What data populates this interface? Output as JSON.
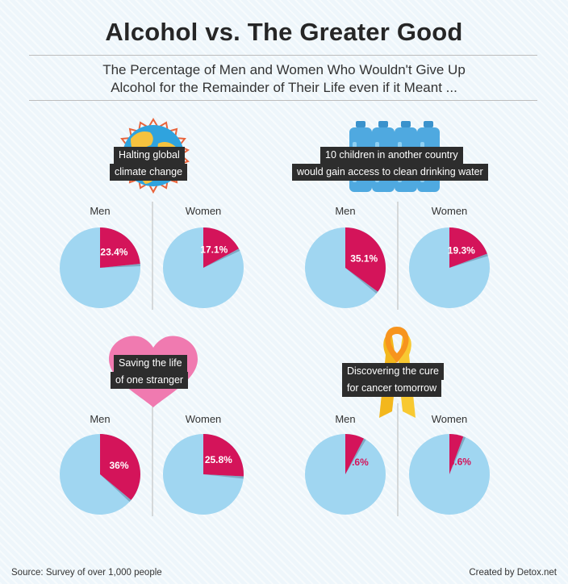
{
  "title": "Alcohol vs. The Greater Good",
  "subtitle": [
    "The Percentage of Men and Women Who Wouldn't Give Up",
    "Alcohol for the Remainder of Their Life even if it Meant ..."
  ],
  "colors": {
    "slice": "#d4145a",
    "rest": "#a0d6f1",
    "shadow": "#7fa9c4",
    "label_bg": "#2d2d2d"
  },
  "chart_data": [
    {
      "type": "pie",
      "title": "Halting global climate change",
      "icon": "globe-icon",
      "series": [
        {
          "name": "Men",
          "value": 23.4,
          "label": "23.4%"
        },
        {
          "name": "Women",
          "value": 17.1,
          "label": "17.1%"
        }
      ]
    },
    {
      "type": "pie",
      "title": "10 children in another country would gain access to clean drinking water",
      "icon": "water-bottles-icon",
      "series": [
        {
          "name": "Men",
          "value": 35.1,
          "label": "35.1%"
        },
        {
          "name": "Women",
          "value": 19.3,
          "label": "19.3%"
        }
      ]
    },
    {
      "type": "pie",
      "title": "Saving the life of one stranger",
      "icon": "heart-icon",
      "series": [
        {
          "name": "Men",
          "value": 36,
          "label": "36%"
        },
        {
          "name": "Women",
          "value": 25.8,
          "label": "25.8%"
        }
      ]
    },
    {
      "type": "pie",
      "title": "Discovering the cure for cancer tomorrow",
      "icon": "awareness-ribbon-icon",
      "series": [
        {
          "name": "Men",
          "value": 7.6,
          "label": "7.6%"
        },
        {
          "name": "Women",
          "value": 5.6,
          "label": "5.6%"
        }
      ]
    }
  ],
  "panel_labels": [
    [
      "Halting global",
      "climate change"
    ],
    [
      "10 children in another country",
      "would gain access to clean drinking water"
    ],
    [
      "Saving the life",
      "of one stranger"
    ],
    [
      "Discovering the cure",
      "for cancer tomorrow"
    ]
  ],
  "footer": {
    "source": "Source: Survey of over 1,000 people",
    "credit": "Created by Detox.net"
  }
}
